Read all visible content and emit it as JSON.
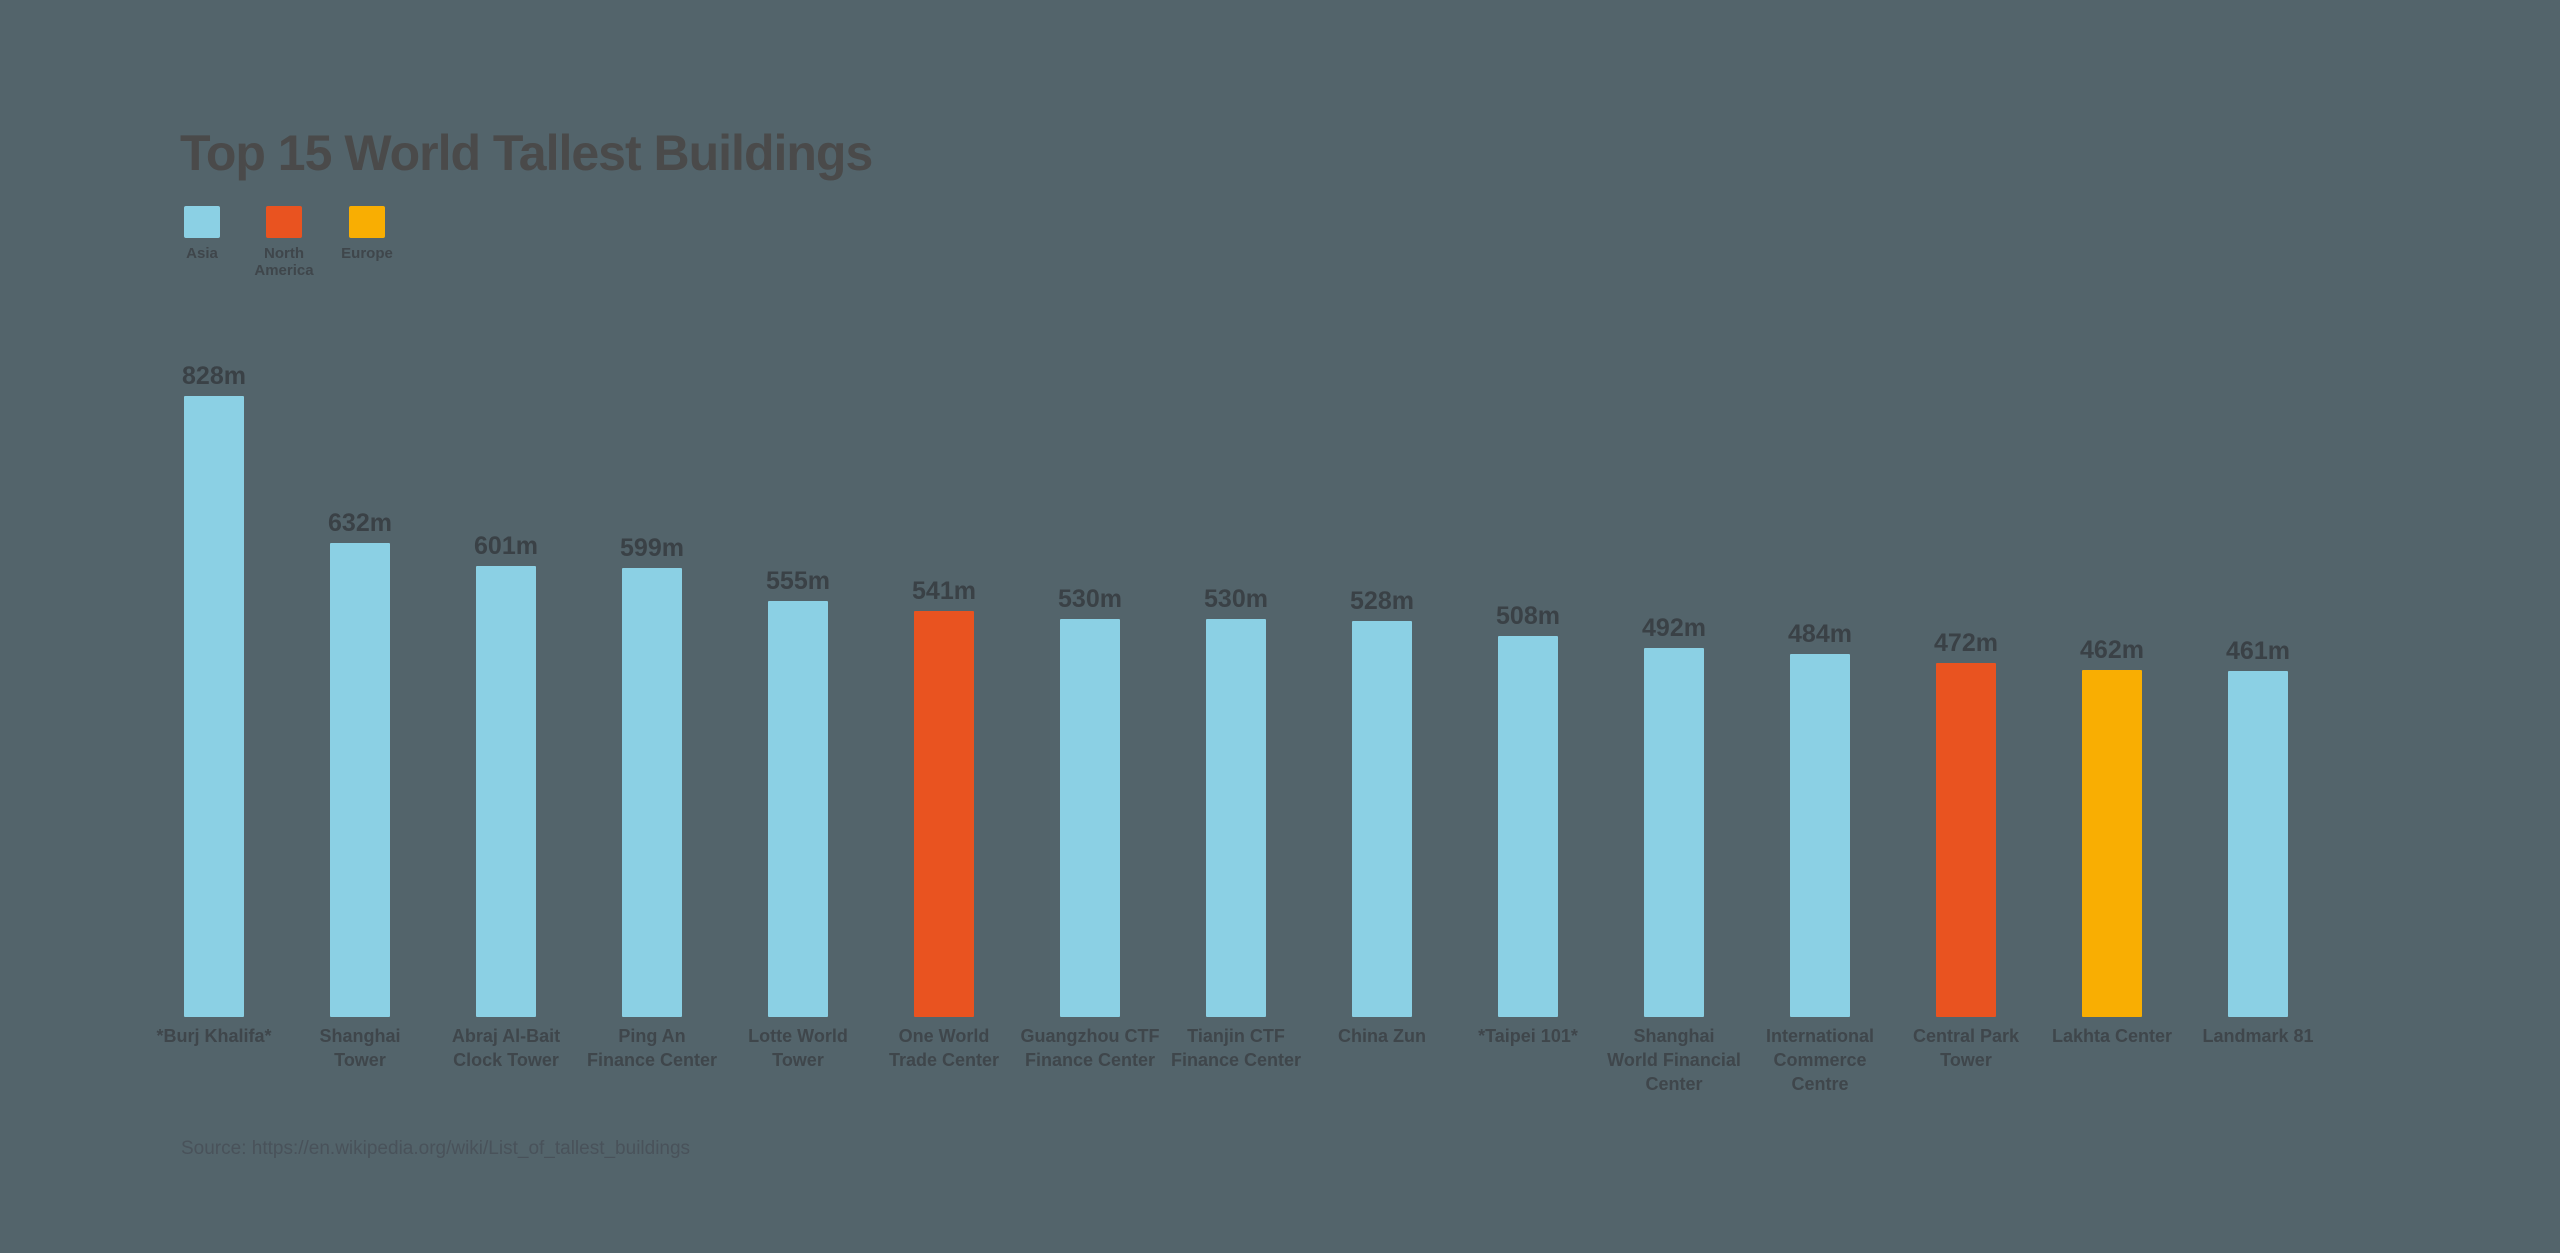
{
  "title": "Top 15 World Tallest Buildings",
  "source": "Source: https://en.wikipedia.org/wiki/List_of_tallest_buildings",
  "colors": {
    "background": "#53646B",
    "asia": "#8BD0E4",
    "north_america": "#E95320",
    "europe": "#F9AE02",
    "title_text": "#4A4A4A",
    "value_text": "#3A4146",
    "label_text": "#3F464B",
    "source_text": "#49525A"
  },
  "legend": {
    "items": [
      {
        "label": "Asia",
        "region": "asia"
      },
      {
        "label": "North\nAmerica",
        "region": "north_america"
      },
      {
        "label": "Europe",
        "region": "europe"
      }
    ]
  },
  "chart_data": {
    "type": "bar",
    "title": "Top 15 World Tallest Buildings",
    "unit": "m",
    "ylim": [
      0,
      828
    ],
    "grid": false,
    "axes_visible": false,
    "legend_position": "top-left",
    "categories": [
      "*Burj Khalifa*",
      "Shanghai Tower",
      "Abraj Al-Bait Clock Tower",
      "Ping An Finance Center",
      "Lotte World Tower",
      "One World Trade Center",
      "Guangzhou CTF Finance Center",
      "Tianjin CTF Finance Center",
      "China Zun",
      "*Taipei 101*",
      "Shanghai World Financial Center",
      "International Commerce Centre",
      "Central Park Tower",
      "Lakhta Center",
      "Landmark 81"
    ],
    "label_lines": [
      "*Burj Khalifa*",
      "Shanghai\nTower",
      "Abraj Al-Bait\nClock Tower",
      "Ping An\nFinance Center",
      "Lotte World\nTower",
      "One World\nTrade Center",
      "Guangzhou CTF\nFinance Center",
      "Tianjin CTF\nFinance Center",
      "China Zun",
      "*Taipei 101*",
      "Shanghai\nWorld Financial\nCenter",
      "International\nCommerce\nCentre",
      "Central Park\nTower",
      "Lakhta Center",
      "Landmark 81"
    ],
    "values": [
      828,
      632,
      601,
      599,
      555,
      541,
      530,
      530,
      528,
      508,
      492,
      484,
      472,
      462,
      461
    ],
    "value_labels": [
      "828m",
      "632m",
      "601m",
      "599m",
      "555m",
      "541m",
      "530m",
      "530m",
      "528m",
      "508m",
      "492m",
      "484m",
      "472m",
      "462m",
      "461m"
    ],
    "regions": [
      "asia",
      "asia",
      "asia",
      "asia",
      "asia",
      "north_america",
      "asia",
      "asia",
      "asia",
      "asia",
      "asia",
      "asia",
      "north_america",
      "europe",
      "asia"
    ]
  }
}
